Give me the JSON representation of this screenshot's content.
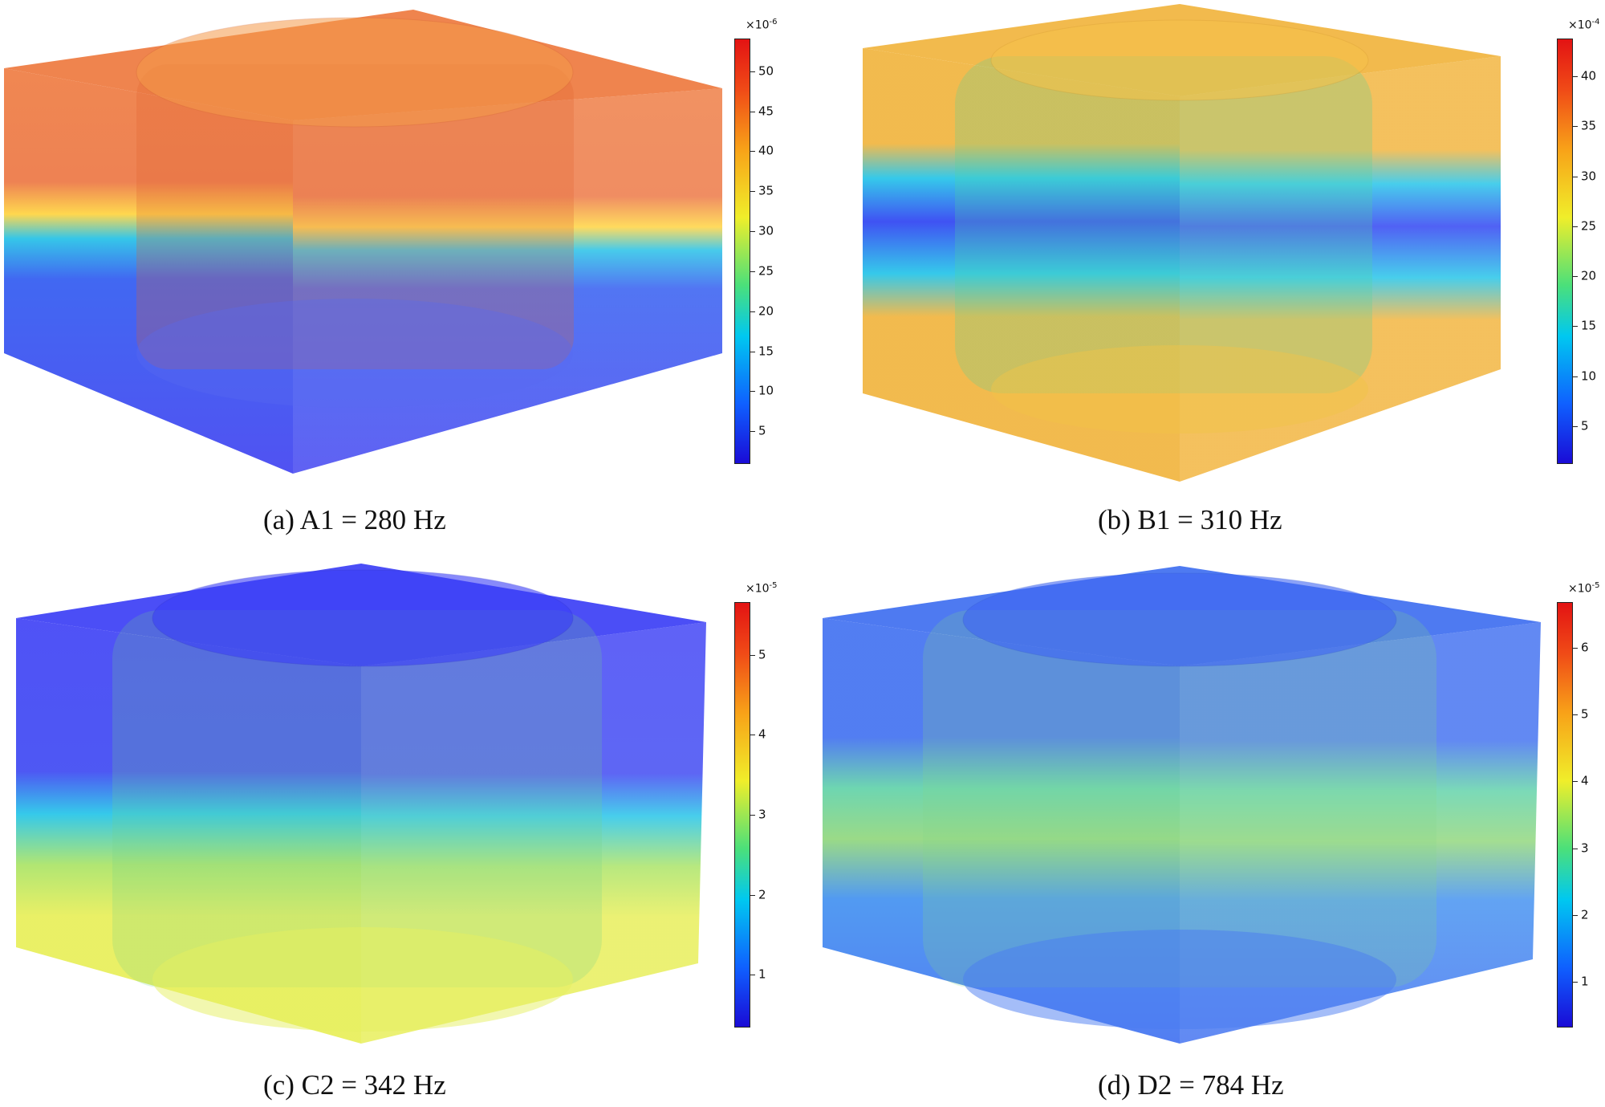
{
  "panels": [
    {
      "id": "a",
      "caption": "(a) A1 = 280 Hz",
      "colorbar": {
        "scale_base": "×10",
        "scale_exp": "-6",
        "ticks": [
          "50",
          "45",
          "40",
          "35",
          "30",
          "25",
          "20",
          "15",
          "10",
          "5"
        ]
      },
      "colors": {
        "top": "#ee7a3f",
        "band": "#ffd33b",
        "bottom": "#3d3ff0",
        "cylinder": "#e0602a"
      }
    },
    {
      "id": "b",
      "caption": "(b) B1 = 310 Hz",
      "colorbar": {
        "scale_base": "×10",
        "scale_exp": "-4",
        "ticks": [
          "40",
          "35",
          "30",
          "25",
          "20",
          "15",
          "10",
          "5"
        ]
      },
      "colors": {
        "top": "#f1b33a",
        "band": "#2a3ff2",
        "bottom": "#f1b33a",
        "cylinder": "#4fd29a"
      }
    },
    {
      "id": "c",
      "caption": "(c) C2 = 342 Hz",
      "colorbar": {
        "scale_base": "×10",
        "scale_exp": "-5",
        "ticks": [
          "5",
          "4",
          "3",
          "2",
          "1"
        ]
      },
      "colors": {
        "top": "#3c3ff5",
        "band": "#1fc3e8",
        "bottom": "#e7ee55",
        "cylinder": "#70d288"
      }
    },
    {
      "id": "d",
      "caption": "(d) D2 = 784 Hz",
      "colorbar": {
        "scale_base": "×10",
        "scale_exp": "-5",
        "ticks": [
          "6",
          "5",
          "4",
          "3",
          "2",
          "1"
        ]
      },
      "colors": {
        "top": "#3f6ff0",
        "band": "#8fd67a",
        "bottom": "#3f6ff0",
        "cylinder": "#86d48a"
      }
    }
  ]
}
